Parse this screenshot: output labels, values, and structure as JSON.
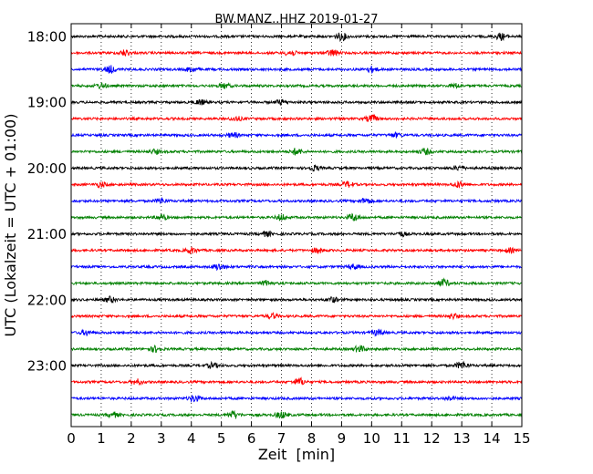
{
  "chart_data": {
    "type": "line",
    "title": "BW.MANZ..HHZ 2019-01-27",
    "xlabel": "Zeit  [min]",
    "ylabel": "UTC (Lokalzeit = UTC + 01:00)",
    "xlim": [
      0,
      15
    ],
    "x_ticks": [
      "0",
      "1",
      "2",
      "3",
      "4",
      "5",
      "6",
      "7",
      "8",
      "9",
      "10",
      "11",
      "12",
      "13",
      "14",
      "15"
    ],
    "y_tick_labels": [
      "18:00",
      "19:00",
      "20:00",
      "21:00",
      "22:00",
      "23:00"
    ],
    "y_tick_rows": [
      0,
      4,
      8,
      12,
      16,
      20
    ],
    "rows_total": 24,
    "row_minutes": 15,
    "grid": "vertical dotted at each minute",
    "trace_colors": [
      "#000000",
      "#ff0000",
      "#0000ff",
      "#008000"
    ],
    "traces": [
      {
        "start": "18:00",
        "color": "#000000",
        "bursts": [
          [
            9.0,
            0.9
          ],
          [
            14.3,
            0.8
          ]
        ]
      },
      {
        "start": "18:15",
        "color": "#ff0000",
        "bursts": [
          [
            1.8,
            0.7
          ],
          [
            7.3,
            0.7
          ],
          [
            8.7,
            0.8
          ]
        ]
      },
      {
        "start": "18:30",
        "color": "#0000ff",
        "bursts": [
          [
            1.3,
            0.9
          ],
          [
            4.0,
            0.6
          ],
          [
            10.0,
            0.7
          ]
        ]
      },
      {
        "start": "18:45",
        "color": "#008000",
        "bursts": [
          [
            1.0,
            0.6
          ],
          [
            5.1,
            0.6
          ],
          [
            12.8,
            0.5
          ]
        ]
      },
      {
        "start": "19:00",
        "color": "#000000",
        "bursts": [
          [
            4.3,
            0.6
          ],
          [
            7.0,
            0.6
          ]
        ]
      },
      {
        "start": "19:15",
        "color": "#ff0000",
        "bursts": [
          [
            10.0,
            0.9
          ],
          [
            5.5,
            0.5
          ]
        ]
      },
      {
        "start": "19:30",
        "color": "#0000ff",
        "bursts": [
          [
            5.4,
            0.6
          ],
          [
            10.8,
            0.5
          ]
        ]
      },
      {
        "start": "19:45",
        "color": "#008000",
        "bursts": [
          [
            7.5,
            0.8
          ],
          [
            11.8,
            0.7
          ],
          [
            2.8,
            0.5
          ]
        ]
      },
      {
        "start": "20:00",
        "color": "#000000",
        "bursts": [
          [
            8.1,
            0.6
          ],
          [
            12.9,
            0.5
          ]
        ]
      },
      {
        "start": "20:15",
        "color": "#ff0000",
        "bursts": [
          [
            1.0,
            0.6
          ],
          [
            9.2,
            0.7
          ],
          [
            12.9,
            0.7
          ]
        ]
      },
      {
        "start": "20:30",
        "color": "#0000ff",
        "bursts": [
          [
            3.0,
            0.6
          ],
          [
            9.8,
            0.7
          ]
        ]
      },
      {
        "start": "20:45",
        "color": "#008000",
        "bursts": [
          [
            3.0,
            0.7
          ],
          [
            7.0,
            0.7
          ],
          [
            9.4,
            0.9
          ]
        ]
      },
      {
        "start": "21:00",
        "color": "#000000",
        "bursts": [
          [
            6.5,
            0.6
          ],
          [
            11.0,
            0.5
          ]
        ]
      },
      {
        "start": "21:15",
        "color": "#ff0000",
        "bursts": [
          [
            4.0,
            0.7
          ],
          [
            8.2,
            0.6
          ],
          [
            14.6,
            0.5
          ]
        ]
      },
      {
        "start": "21:30",
        "color": "#0000ff",
        "bursts": [
          [
            4.9,
            0.8
          ],
          [
            9.4,
            0.6
          ]
        ]
      },
      {
        "start": "21:45",
        "color": "#008000",
        "bursts": [
          [
            12.4,
            0.9
          ],
          [
            6.5,
            0.6
          ]
        ]
      },
      {
        "start": "22:00",
        "color": "#000000",
        "bursts": [
          [
            1.3,
            0.7
          ],
          [
            8.7,
            0.6
          ]
        ]
      },
      {
        "start": "22:15",
        "color": "#ff0000",
        "bursts": [
          [
            6.7,
            0.6
          ],
          [
            12.7,
            0.6
          ]
        ]
      },
      {
        "start": "22:30",
        "color": "#0000ff",
        "bursts": [
          [
            0.5,
            0.6
          ],
          [
            10.2,
            0.7
          ]
        ]
      },
      {
        "start": "22:45",
        "color": "#008000",
        "bursts": [
          [
            2.8,
            0.7
          ],
          [
            9.6,
            0.8
          ]
        ]
      },
      {
        "start": "23:00",
        "color": "#000000",
        "bursts": [
          [
            4.7,
            0.6
          ],
          [
            13.0,
            0.9
          ]
        ]
      },
      {
        "start": "23:15",
        "color": "#ff0000",
        "bursts": [
          [
            7.6,
            0.9
          ],
          [
            2.2,
            0.6
          ]
        ]
      },
      {
        "start": "23:30",
        "color": "#0000ff",
        "bursts": [
          [
            4.1,
            0.8
          ],
          [
            12.6,
            0.5
          ]
        ]
      },
      {
        "start": "23:45",
        "color": "#008000",
        "bursts": [
          [
            5.4,
            0.9
          ],
          [
            7.0,
            0.8
          ],
          [
            1.4,
            0.6
          ]
        ]
      }
    ]
  }
}
